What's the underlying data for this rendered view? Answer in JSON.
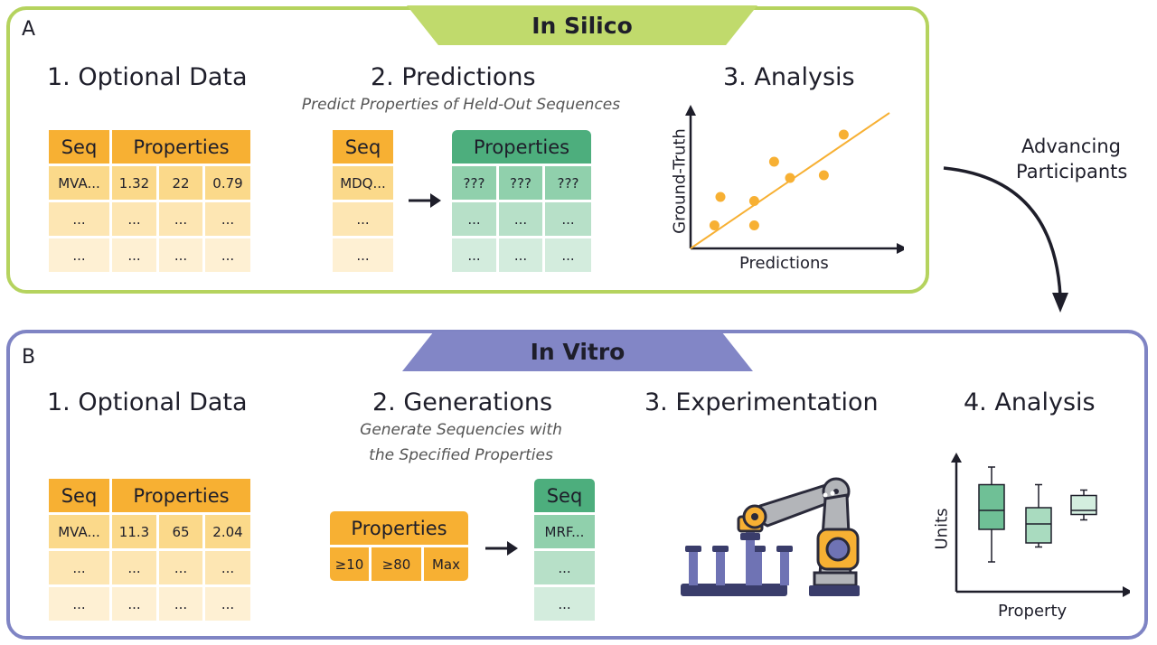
{
  "panel_a": {
    "letter": "A",
    "title": "In Silico",
    "step1": {
      "title": "1. Optional Data",
      "header_seq": "Seq",
      "header_props": "Properties",
      "row1": [
        "MVA...",
        "1.32",
        "22",
        "0.79"
      ],
      "row2": [
        "...",
        "...",
        "...",
        "..."
      ],
      "row3": [
        "...",
        "...",
        "...",
        "..."
      ]
    },
    "step2": {
      "title": "2. Predictions",
      "subtitle": "Predict Properties of Held-Out Sequences",
      "header_seq": "Seq",
      "header_props": "Properties",
      "seq_rows": [
        "MDQ...",
        "...",
        "..."
      ],
      "prop_row1": [
        "???",
        "???",
        "???"
      ],
      "prop_row2": [
        "...",
        "...",
        "..."
      ],
      "prop_row3": [
        "...",
        "...",
        "..."
      ]
    },
    "step3": {
      "title": "3. Analysis",
      "xlabel": "Predictions",
      "ylabel": "Ground-Truth"
    }
  },
  "transition_label_line1": "Advancing",
  "transition_label_line2": "Participants",
  "panel_b": {
    "letter": "B",
    "title": "In Vitro",
    "step1": {
      "title": "1. Optional Data",
      "header_seq": "Seq",
      "header_props": "Properties",
      "row1": [
        "MVA...",
        "11.3",
        "65",
        "2.04"
      ],
      "row2": [
        "...",
        "...",
        "...",
        "..."
      ],
      "row3": [
        "...",
        "...",
        "...",
        "..."
      ]
    },
    "step2": {
      "title": "2. Generations",
      "subtitle_line1": "Generate Sequencies with",
      "subtitle_line2": "the Specified Properties",
      "header_props": "Properties",
      "spec_values": [
        "≥10",
        "≥80",
        "Max"
      ],
      "header_seq": "Seq",
      "seq_rows": [
        "MRF...",
        "...",
        "..."
      ]
    },
    "step3": {
      "title": "3. Experimentation",
      "icon": "robot-arm-icon"
    },
    "step4": {
      "title": "4. Analysis",
      "xlabel": "Property",
      "ylabel": "Units"
    }
  },
  "colors": {
    "in_silico": "#b5d35e",
    "in_vitro": "#7f84c4",
    "orange": "#f7b033",
    "green": "#4dae7d",
    "scatter_point": "#f7b033"
  },
  "chart_data": [
    {
      "type": "scatter",
      "xlabel": "Predictions",
      "ylabel": "Ground-Truth",
      "x": [
        0.12,
        0.15,
        0.32,
        0.32,
        0.42,
        0.5,
        0.67,
        0.77
      ],
      "y": [
        0.17,
        0.38,
        0.17,
        0.35,
        0.64,
        0.52,
        0.54,
        0.84
      ],
      "trendline": {
        "x": [
          0,
          1
        ],
        "y": [
          0,
          1
        ]
      }
    },
    {
      "type": "box",
      "xlabel": "Property",
      "ylabel": "Units",
      "boxes": [
        {
          "min": 0.22,
          "q1": 0.46,
          "median": 0.6,
          "q3": 0.79,
          "max": 0.92,
          "color": "#6fc096"
        },
        {
          "min": 0.33,
          "q1": 0.36,
          "median": 0.5,
          "q3": 0.62,
          "max": 0.79,
          "color": "#a9dbbf"
        },
        {
          "min": 0.53,
          "q1": 0.57,
          "median": 0.6,
          "q3": 0.71,
          "max": 0.75,
          "color": "#d3eedf"
        }
      ]
    }
  ]
}
